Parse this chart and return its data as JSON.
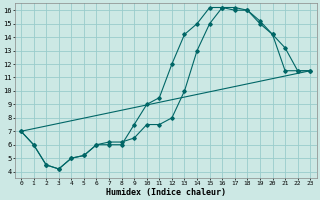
{
  "xlabel": "Humidex (Indice chaleur)",
  "background_color": "#cce8e4",
  "grid_color": "#99cccc",
  "line_color": "#006666",
  "xlim": [
    -0.5,
    23.5
  ],
  "ylim": [
    3.5,
    16.5
  ],
  "xticks": [
    0,
    1,
    2,
    3,
    4,
    5,
    6,
    7,
    8,
    9,
    10,
    11,
    12,
    13,
    14,
    15,
    16,
    17,
    18,
    19,
    20,
    21,
    22,
    23
  ],
  "yticks": [
    4,
    5,
    6,
    7,
    8,
    9,
    10,
    11,
    12,
    13,
    14,
    15,
    16
  ],
  "line1_x": [
    0,
    1,
    2,
    3,
    4,
    5,
    6,
    7,
    8,
    9,
    10,
    11,
    12,
    13,
    14,
    15,
    16,
    17,
    18,
    19,
    20,
    21,
    22,
    23
  ],
  "line1_y": [
    7.0,
    6.0,
    4.5,
    4.2,
    5.0,
    5.2,
    6.0,
    6.0,
    6.0,
    7.5,
    9.0,
    9.5,
    12.0,
    14.2,
    15.0,
    16.2,
    16.2,
    16.0,
    16.0,
    15.0,
    14.2,
    13.2,
    11.5,
    11.5
  ],
  "line2_x": [
    0,
    1,
    2,
    3,
    4,
    5,
    6,
    7,
    8,
    9,
    10,
    11,
    12,
    13,
    14,
    15,
    16,
    17,
    18,
    19,
    20,
    21,
    22,
    23
  ],
  "line2_y": [
    7.0,
    6.0,
    4.5,
    4.2,
    5.0,
    5.2,
    6.0,
    6.2,
    6.2,
    6.5,
    7.5,
    7.5,
    8.0,
    10.0,
    13.0,
    15.0,
    16.2,
    16.2,
    16.0,
    15.2,
    14.2,
    11.5,
    11.5,
    11.5
  ],
  "line3_x": [
    0,
    23
  ],
  "line3_y": [
    7.0,
    11.5
  ]
}
